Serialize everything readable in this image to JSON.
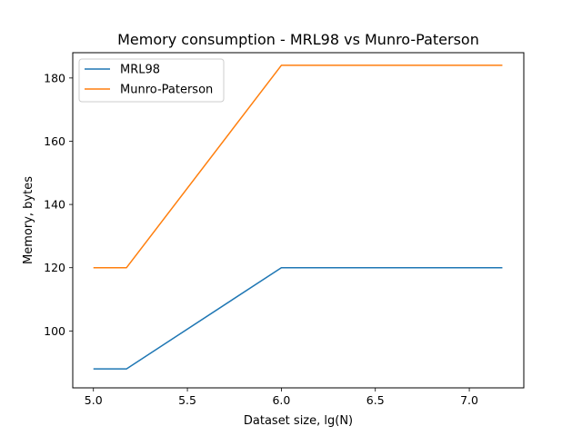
{
  "chart_data": {
    "type": "line",
    "title": "Memory consumption - MRL98 vs Munro-Paterson",
    "xlabel": "Dataset size, lg(N)",
    "ylabel": "Memory, bytes",
    "xlim": [
      4.89,
      7.29
    ],
    "ylim": [
      82,
      188
    ],
    "xticks": [
      5.0,
      5.5,
      6.0,
      6.5,
      7.0
    ],
    "xtick_labels": [
      "5.0",
      "5.5",
      "6.0",
      "6.5",
      "7.0"
    ],
    "yticks": [
      100,
      120,
      140,
      160,
      180
    ],
    "ytick_labels": [
      "100",
      "120",
      "140",
      "160",
      "180"
    ],
    "grid": false,
    "legend": {
      "placement": "top-left"
    },
    "series": [
      {
        "name": "MRL98",
        "color": "#1f77b4",
        "x": [
          5.0,
          5.176,
          6.0,
          7.176
        ],
        "y": [
          88,
          88,
          120,
          120
        ]
      },
      {
        "name": "Munro-Paterson",
        "color": "#ff7f0e",
        "x": [
          5.0,
          5.176,
          6.0,
          7.176
        ],
        "y": [
          120,
          120,
          184,
          184
        ]
      }
    ]
  }
}
